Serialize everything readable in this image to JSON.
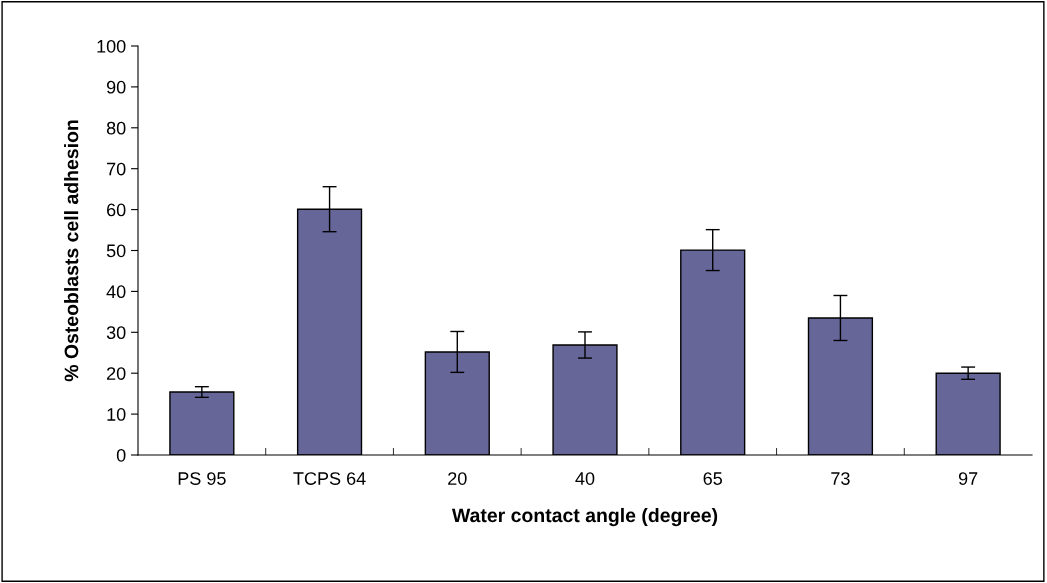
{
  "chart_data": {
    "type": "bar",
    "xlabel": "Water contact angle (degree)",
    "ylabel": "% Osteoblasts cell adhesion",
    "categories": [
      "PS 95",
      "TCPS 64",
      "20",
      "40",
      "65",
      "73",
      "97"
    ],
    "values": [
      15.4,
      60.1,
      25.2,
      26.9,
      50.1,
      33.5,
      20
    ],
    "errors": [
      1.3,
      5.5,
      5,
      3.2,
      5,
      5.5,
      1.5
    ],
    "color": "#666699",
    "ylim": [
      0,
      100
    ],
    "yticks": [
      0,
      10,
      20,
      30,
      40,
      50,
      60,
      70,
      80,
      90,
      100
    ],
    "grid": false,
    "legend": false
  }
}
